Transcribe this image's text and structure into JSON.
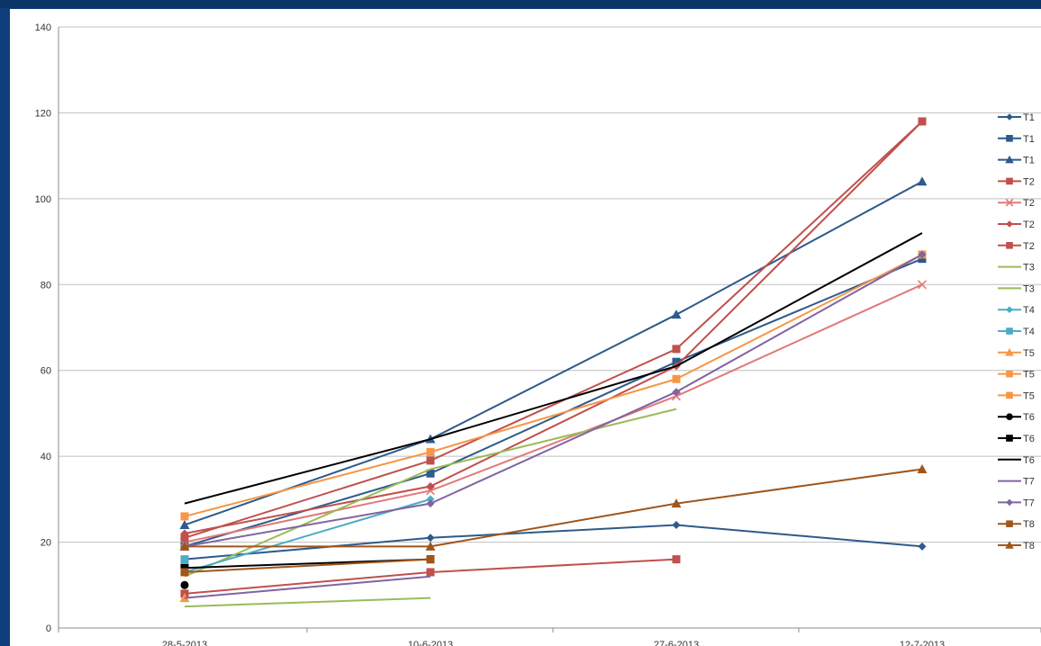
{
  "chart_data": {
    "type": "line",
    "title": "",
    "xlabel": "",
    "ylabel": "",
    "categories": [
      "28-5-2013",
      "10-6-2013",
      "27-6-2013",
      "12-7-2013"
    ],
    "ylim": [
      0,
      140
    ],
    "yticks": [
      0,
      20,
      40,
      60,
      80,
      100,
      120,
      140
    ],
    "grid": true,
    "legend": "right",
    "series": [
      {
        "name": "T1",
        "color": "#2e5a8c",
        "marker": "diamond",
        "values": [
          16,
          21,
          24,
          19
        ]
      },
      {
        "name": "T1",
        "color": "#2e5a8c",
        "marker": "square",
        "values": [
          19,
          36,
          62,
          86
        ]
      },
      {
        "name": "T1",
        "color": "#2e5a8c",
        "marker": "triangle",
        "values": [
          24,
          44,
          73,
          104
        ]
      },
      {
        "name": "T2",
        "color": "#c0504d",
        "marker": "square",
        "values": [
          8,
          13,
          16,
          null
        ]
      },
      {
        "name": "T2",
        "color": "#e07a7a",
        "marker": "x",
        "values": [
          20,
          32,
          54,
          80
        ]
      },
      {
        "name": "T2",
        "color": "#c0504d",
        "marker": "diamond",
        "values": [
          22,
          33,
          61,
          118
        ]
      },
      {
        "name": "T2",
        "color": "#c0504d",
        "marker": "square",
        "values": [
          21,
          39,
          65,
          118
        ]
      },
      {
        "name": "T3",
        "color": "#9bbb59",
        "marker": "none",
        "values": [
          5,
          7,
          null,
          null
        ]
      },
      {
        "name": "T3",
        "color": "#9bbb59",
        "marker": "none",
        "values": [
          12,
          37,
          51,
          null
        ]
      },
      {
        "name": "T4",
        "color": "#4bacc6",
        "marker": "diamond",
        "values": [
          13,
          30,
          null,
          null
        ]
      },
      {
        "name": "T4",
        "color": "#4bacc6",
        "marker": "square",
        "values": [
          16,
          null,
          null,
          null
        ]
      },
      {
        "name": "T5",
        "color": "#f79646",
        "marker": "triangle",
        "values": [
          7,
          null,
          null,
          null
        ]
      },
      {
        "name": "T5",
        "color": "#f79646",
        "marker": "square",
        "values": [
          14,
          null,
          null,
          null
        ]
      },
      {
        "name": "T5",
        "color": "#f79646",
        "marker": "square",
        "values": [
          26,
          41,
          58,
          87
        ]
      },
      {
        "name": "T6",
        "color": "#000000",
        "marker": "circle",
        "values": [
          10,
          null,
          null,
          null
        ]
      },
      {
        "name": "T6",
        "color": "#000000",
        "marker": "square",
        "values": [
          14,
          16,
          null,
          null
        ]
      },
      {
        "name": "T6",
        "color": "#000000",
        "marker": "none",
        "values": [
          29,
          44,
          61,
          92
        ]
      },
      {
        "name": "T7",
        "color": "#8064a2",
        "marker": "none",
        "values": [
          7,
          12,
          null,
          null
        ]
      },
      {
        "name": "T7",
        "color": "#8064a2",
        "marker": "diamond",
        "values": [
          19,
          29,
          55,
          87
        ]
      },
      {
        "name": "T8",
        "color": "#a0561b",
        "marker": "square",
        "values": [
          13,
          16,
          null,
          null
        ]
      },
      {
        "name": "T8",
        "color": "#a0561b",
        "marker": "triangle",
        "values": [
          19,
          19,
          29,
          37
        ]
      }
    ]
  }
}
